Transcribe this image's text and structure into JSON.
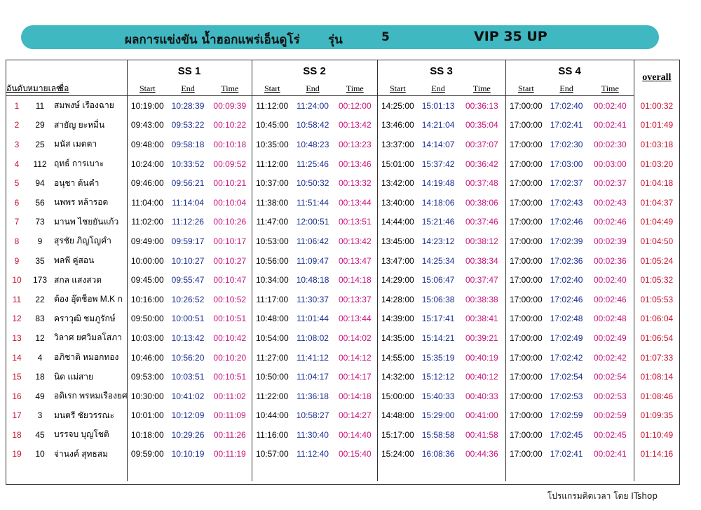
{
  "header": {
    "title": "ผลการแข่งขัน น้ำฮอกแพร่เอ็นดูโร่",
    "class_label": "รุ่น",
    "class_number": 5,
    "class_name": "VIP 35 UP"
  },
  "table": {
    "columns": [
      "อันดับ",
      "หมายเลข",
      "ชื่อ"
    ],
    "stages": [
      "SS 1",
      "SS 2",
      "SS 3",
      "SS 4"
    ],
    "subcolumns": [
      "Start",
      "End",
      "Time"
    ],
    "overall": "overall",
    "rows": [
      [
        1,
        11,
        "สมพงษ์ เรืองฉาย",
        "10:19:00",
        "10:28:39",
        "00:09:39",
        "11:12:00",
        "11:24:00",
        "00:12:00",
        "14:25:00",
        "15:01:13",
        "00:36:13",
        "17:00:00",
        "17:02:40",
        "00:02:40",
        "01:00:32"
      ],
      [
        2,
        29,
        "สายัญ ยะหมื่น",
        "09:43:00",
        "09:53:22",
        "00:10:22",
        "10:45:00",
        "10:58:42",
        "00:13:42",
        "13:46:00",
        "14:21:04",
        "00:35:04",
        "17:00:00",
        "17:02:41",
        "00:02:41",
        "01:01:49"
      ],
      [
        3,
        25,
        "มนัส เมตตา",
        "09:48:00",
        "09:58:18",
        "00:10:18",
        "10:35:00",
        "10:48:23",
        "00:13:23",
        "13:37:00",
        "14:14:07",
        "00:37:07",
        "17:00:00",
        "17:02:30",
        "00:02:30",
        "01:03:18"
      ],
      [
        4,
        112,
        "ฤทธ์ การเบาะ",
        "10:24:00",
        "10:33:52",
        "00:09:52",
        "11:12:00",
        "11:25:46",
        "00:13:46",
        "15:01:00",
        "15:37:42",
        "00:36:42",
        "17:00:00",
        "17:03:00",
        "00:03:00",
        "01:03:20"
      ],
      [
        5,
        94,
        "อนุชา ต้นคำ",
        "09:46:00",
        "09:56:21",
        "00:10:21",
        "10:37:00",
        "10:50:32",
        "00:13:32",
        "13:42:00",
        "14:19:48",
        "00:37:48",
        "17:00:00",
        "17:02:37",
        "00:02:37",
        "01:04:18"
      ],
      [
        6,
        56,
        "นพพร หล้ารอด",
        "11:04:00",
        "11:14:04",
        "00:10:04",
        "11:38:00",
        "11:51:44",
        "00:13:44",
        "13:40:00",
        "14:18:06",
        "00:38:06",
        "17:00:00",
        "17:02:43",
        "00:02:43",
        "01:04:37"
      ],
      [
        7,
        73,
        "มานพ ไชยยันแก้ว",
        "11:02:00",
        "11:12:26",
        "00:10:26",
        "11:47:00",
        "12:00:51",
        "00:13:51",
        "14:44:00",
        "15:21:46",
        "00:37:46",
        "17:00:00",
        "17:02:46",
        "00:02:46",
        "01:04:49"
      ],
      [
        8,
        9,
        "สุรชัย ภิญโญคำ",
        "09:49:00",
        "09:59:17",
        "00:10:17",
        "10:53:00",
        "11:06:42",
        "00:13:42",
        "13:45:00",
        "14:23:12",
        "00:38:12",
        "17:00:00",
        "17:02:39",
        "00:02:39",
        "01:04:50"
      ],
      [
        9,
        35,
        "พลพี คู่สอน",
        "10:00:00",
        "10:10:27",
        "00:10:27",
        "10:56:00",
        "11:09:47",
        "00:13:47",
        "13:47:00",
        "14:25:34",
        "00:38:34",
        "17:00:00",
        "17:02:36",
        "00:02:36",
        "01:05:24"
      ],
      [
        10,
        173,
        "สกล แสงสวด",
        "09:45:00",
        "09:55:47",
        "00:10:47",
        "10:34:00",
        "10:48:18",
        "00:14:18",
        "14:29:00",
        "15:06:47",
        "00:37:47",
        "17:00:00",
        "17:02:40",
        "00:02:40",
        "01:05:32"
      ],
      [
        11,
        22,
        "ต้อง อุ๊ดช็อพ M.K ก",
        "10:16:00",
        "10:26:52",
        "00:10:52",
        "11:17:00",
        "11:30:37",
        "00:13:37",
        "14:28:00",
        "15:06:38",
        "00:38:38",
        "17:00:00",
        "17:02:46",
        "00:02:46",
        "01:05:53"
      ],
      [
        12,
        83,
        "คราวุฒิ ชมภูรักษ์",
        "09:50:00",
        "10:00:51",
        "00:10:51",
        "10:48:00",
        "11:01:44",
        "00:13:44",
        "14:39:00",
        "15:17:41",
        "00:38:41",
        "17:00:00",
        "17:02:48",
        "00:02:48",
        "01:06:04"
      ],
      [
        13,
        12,
        "วิลาศ ยศวิมลโสภา",
        "10:03:00",
        "10:13:42",
        "00:10:42",
        "10:54:00",
        "11:08:02",
        "00:14:02",
        "14:35:00",
        "15:14:21",
        "00:39:21",
        "17:00:00",
        "17:02:49",
        "00:02:49",
        "01:06:54"
      ],
      [
        14,
        4,
        "อภิชาติ หมอกทอง",
        "10:46:00",
        "10:56:20",
        "00:10:20",
        "11:27:00",
        "11:41:12",
        "00:14:12",
        "14:55:00",
        "15:35:19",
        "00:40:19",
        "17:00:00",
        "17:02:42",
        "00:02:42",
        "01:07:33"
      ],
      [
        15,
        18,
        "นิด แม่สาย",
        "09:53:00",
        "10:03:51",
        "00:10:51",
        "10:50:00",
        "11:04:17",
        "00:14:17",
        "14:32:00",
        "15:12:12",
        "00:40:12",
        "17:00:00",
        "17:02:54",
        "00:02:54",
        "01:08:14"
      ],
      [
        16,
        49,
        "อดิเรก พรหมเรืองยศ",
        "10:30:00",
        "10:41:02",
        "00:11:02",
        "11:22:00",
        "11:36:18",
        "00:14:18",
        "15:00:00",
        "15:40:33",
        "00:40:33",
        "17:00:00",
        "17:02:53",
        "00:02:53",
        "01:08:46"
      ],
      [
        17,
        3,
        "มนตรี ชัยวรรณะ",
        "10:01:00",
        "10:12:09",
        "00:11:09",
        "10:44:00",
        "10:58:27",
        "00:14:27",
        "14:48:00",
        "15:29:00",
        "00:41:00",
        "17:00:00",
        "17:02:59",
        "00:02:59",
        "01:09:35"
      ],
      [
        18,
        45,
        "บรรจบ บุญโชติ",
        "10:18:00",
        "10:29:26",
        "00:11:26",
        "11:16:00",
        "11:30:40",
        "00:14:40",
        "15:17:00",
        "15:58:58",
        "00:41:58",
        "17:00:00",
        "17:02:45",
        "00:02:45",
        "01:10:49"
      ],
      [
        19,
        10,
        "จ่านงค์ สุทธสม",
        "09:59:00",
        "10:10:19",
        "00:11:19",
        "10:57:00",
        "11:12:40",
        "00:15:40",
        "15:24:00",
        "16:08:36",
        "00:44:36",
        "17:00:00",
        "17:02:41",
        "00:02:41",
        "01:14:16"
      ]
    ]
  },
  "footer": "โปรแกรมคิดเวลา โดย ITshop"
}
